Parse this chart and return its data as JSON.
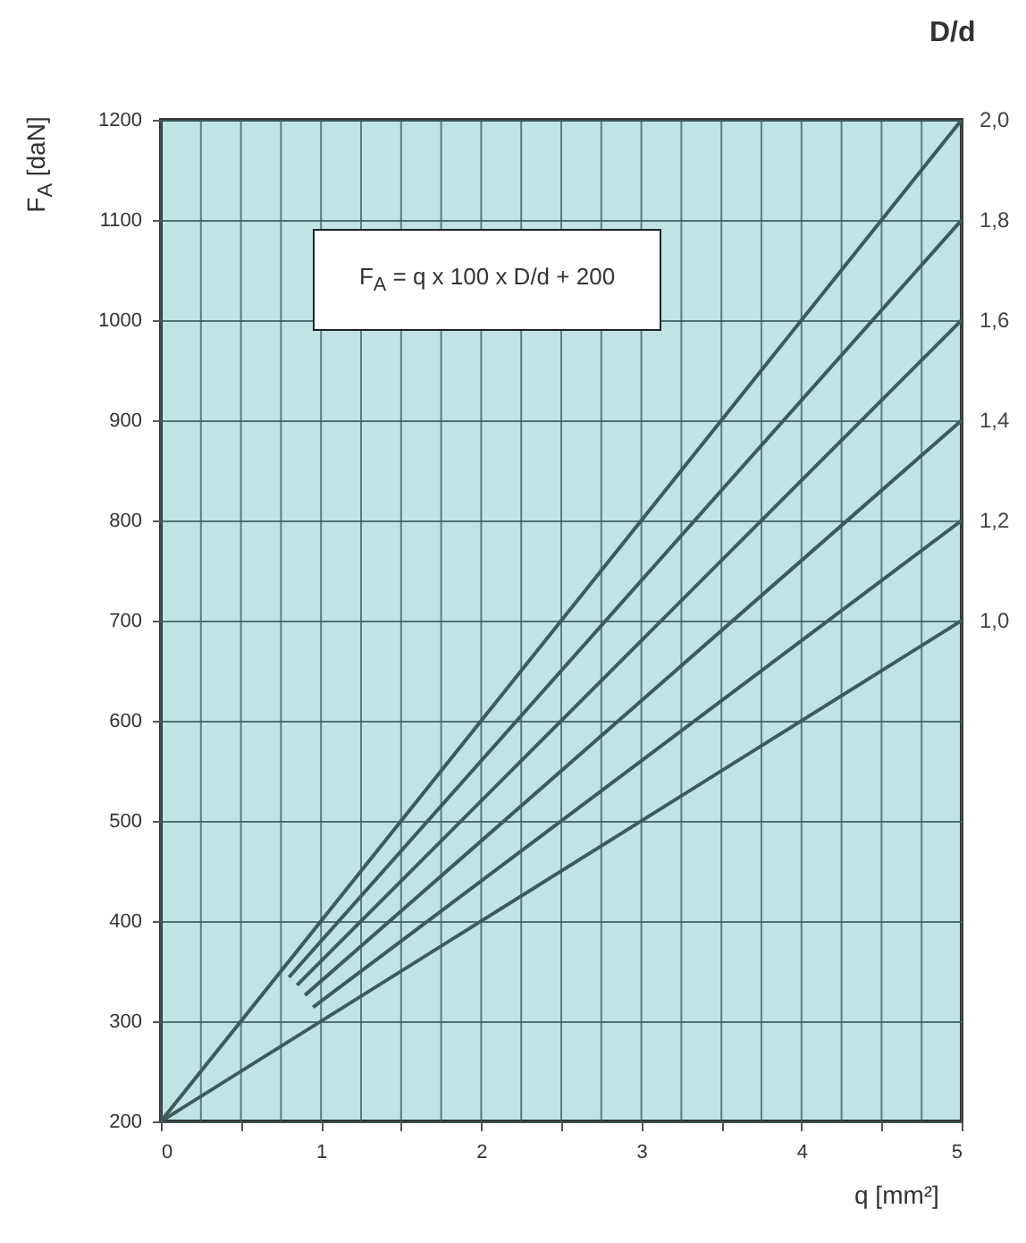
{
  "chart_data": {
    "type": "line",
    "xlabel": "q [mm²]",
    "ylabel": "F$_{A}$ [daN]",
    "legend_title": "D/d",
    "annotations": [
      "F$_{A}$ = q x 100 x D/d + 200"
    ],
    "xlim": [
      0,
      5
    ],
    "ylim": [
      200,
      1200
    ],
    "xticks": [
      0,
      {
        "value": 0.25,
        "label": null
      },
      {
        "value": 0.5,
        "label": null
      },
      {
        "value": 0.75,
        "label": null
      },
      1,
      {
        "value": 1.25,
        "label": null
      },
      {
        "value": 1.5,
        "label": null
      },
      {
        "value": 1.75,
        "label": null
      },
      2,
      {
        "value": 2.25,
        "label": null
      },
      {
        "value": 2.5,
        "label": null
      },
      {
        "value": 2.75,
        "label": null
      },
      3,
      {
        "value": 3.25,
        "label": null
      },
      {
        "value": 3.5,
        "label": null
      },
      {
        "value": 3.75,
        "label": null
      },
      4,
      {
        "value": 4.25,
        "label": null
      },
      {
        "value": 4.5,
        "label": null
      },
      {
        "value": 4.75,
        "label": null
      },
      5
    ],
    "yticks": [
      200,
      300,
      400,
      500,
      600,
      700,
      800,
      900,
      1000,
      1100,
      1200
    ],
    "grid": true,
    "series": [
      {
        "name": "2,0",
        "color": "#3e5a5c",
        "x": [
          0,
          5
        ],
        "values": [
          200,
          1200
        ]
      },
      {
        "name": "1,8",
        "color": "#3e5a5c",
        "x": [
          0.8,
          5
        ],
        "values": [
          344,
          1100
        ]
      },
      {
        "name": "1,6",
        "color": "#3e5a5c",
        "x": [
          0.85,
          5
        ],
        "values": [
          336,
          1000
        ]
      },
      {
        "name": "1,4",
        "color": "#3e5a5c",
        "x": [
          0.9,
          5
        ],
        "values": [
          326,
          900
        ]
      },
      {
        "name": "1,2",
        "color": "#3e5a5c",
        "x": [
          0.95,
          5
        ],
        "values": [
          314,
          800
        ]
      },
      {
        "name": "1,0",
        "color": "#3e5a5c",
        "x": [
          0,
          5
        ],
        "values": [
          200,
          700
        ]
      }
    ]
  }
}
